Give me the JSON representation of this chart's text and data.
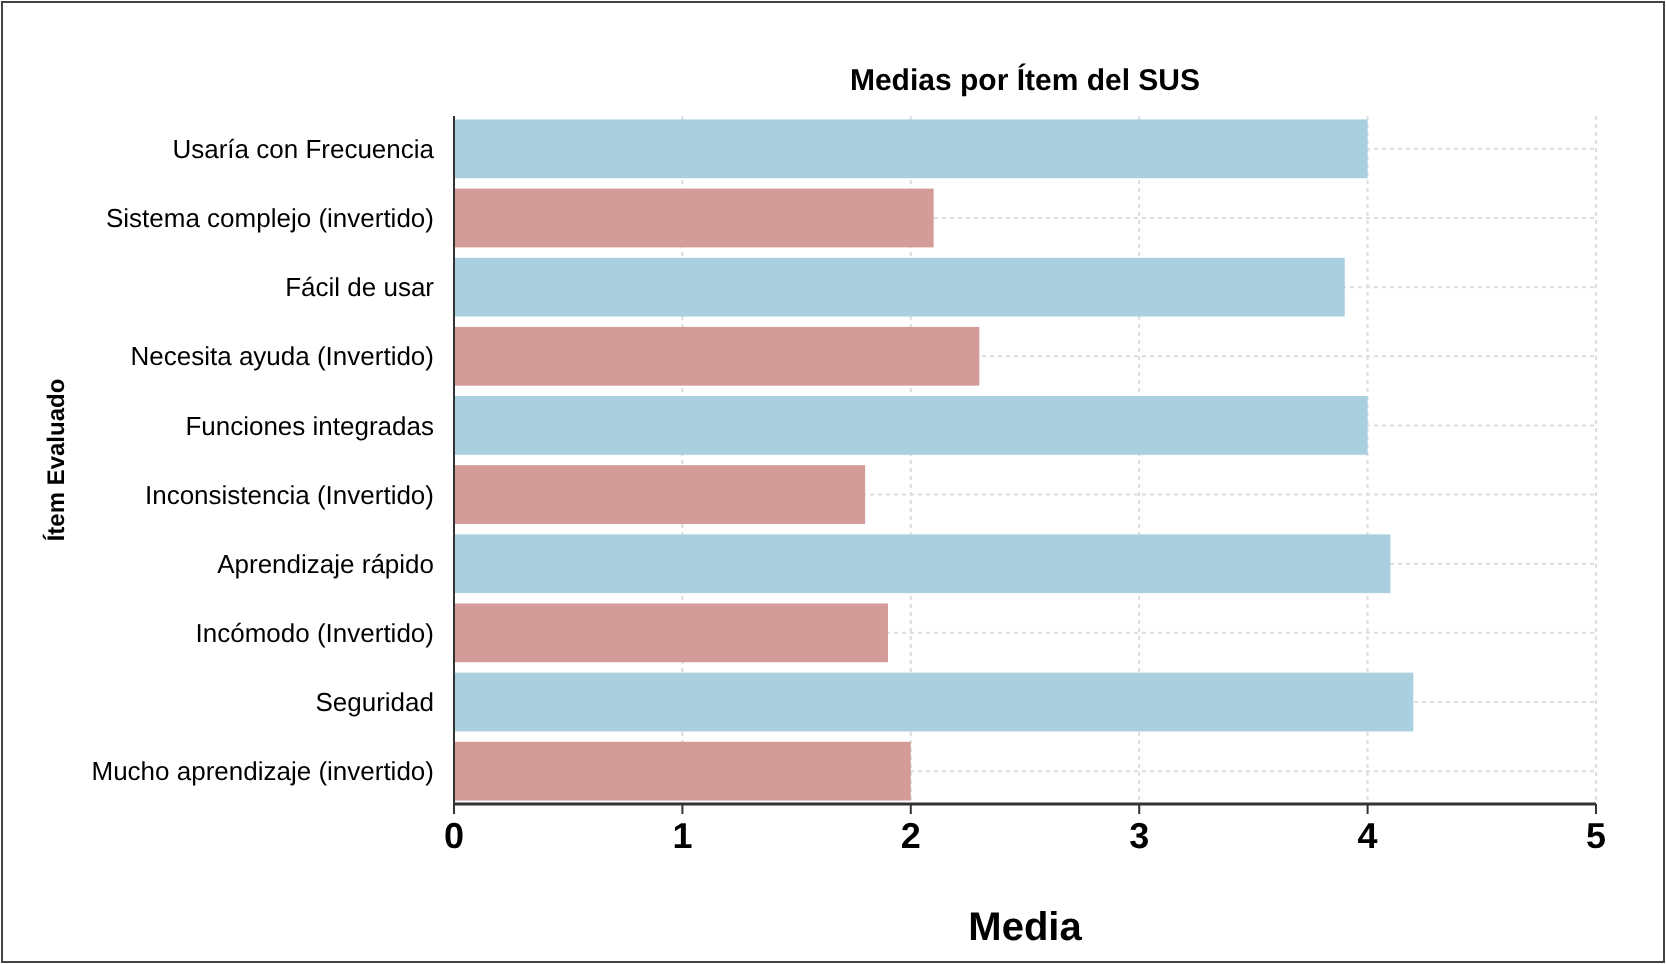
{
  "chart_data": {
    "type": "bar",
    "orientation": "horizontal",
    "title": "Medias por Ítem del SUS",
    "xlabel": "Media",
    "ylabel": "Ítem Evaluado",
    "categories": [
      "Usaría con Frecuencia",
      "Sistema complejo (invertido)",
      "Fácil de usar",
      "Necesita ayuda (Invertido)",
      "Funciones integradas",
      "Inconsistencia (Invertido)",
      "Aprendizaje rápido",
      "Incómodo (Invertido)",
      "Seguridad",
      "Mucho aprendizaje (invertido)"
    ],
    "values": [
      4.0,
      2.1,
      3.9,
      2.3,
      4.0,
      1.8,
      4.1,
      1.9,
      4.2,
      2.0
    ],
    "colors": [
      "#aacfdf",
      "#d49c99",
      "#aacfdf",
      "#d49c99",
      "#aacfdf",
      "#d49c99",
      "#aacfdf",
      "#d49c99",
      "#aacfdf",
      "#d49c99"
    ],
    "xlim": [
      0,
      5
    ],
    "xticks": [
      0,
      1,
      2,
      3,
      4,
      5
    ],
    "grid": true
  }
}
